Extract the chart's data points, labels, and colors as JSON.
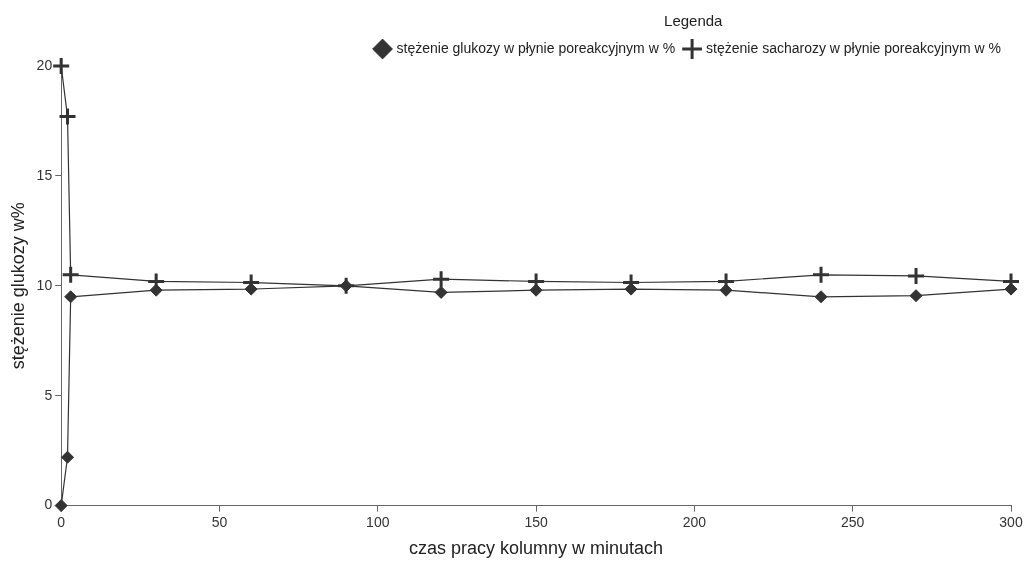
{
  "chart_data": {
    "type": "line",
    "xlabel": "czas pracy kolumny w minutach",
    "ylabel": "stężenie glukozy w%",
    "legend_title": "Legenda",
    "legend": "top right",
    "grid": false,
    "line_style": "solid",
    "xlim": [
      0,
      300
    ],
    "xticks": [
      0,
      50,
      100,
      150,
      200,
      250,
      300
    ],
    "ylim": [
      0,
      20
    ],
    "yticks": [
      0,
      5,
      10,
      15,
      20
    ],
    "series": [
      {
        "name": "stężenie glukozy w płynie poreakcyjnym w %",
        "color": "#333333",
        "marker": "diamond",
        "x": [
          0,
          2,
          3,
          30,
          60,
          90,
          120,
          150,
          180,
          210,
          240,
          270,
          300
        ],
        "values": [
          0,
          2.2,
          9.5,
          9.8,
          9.85,
          10,
          9.7,
          9.8,
          9.85,
          9.8,
          9.5,
          9.55,
          9.85
        ]
      },
      {
        "name": "stężenie sacharozy w płynie poreakcyjnym w %",
        "color": "#333333",
        "marker": "cross",
        "x": [
          0,
          2,
          3,
          30,
          60,
          90,
          120,
          150,
          180,
          210,
          240,
          270,
          300
        ],
        "values": [
          20,
          17.7,
          10.5,
          10.2,
          10.15,
          10,
          10.3,
          10.2,
          10.15,
          10.2,
          10.5,
          10.45,
          10.2
        ]
      }
    ]
  }
}
